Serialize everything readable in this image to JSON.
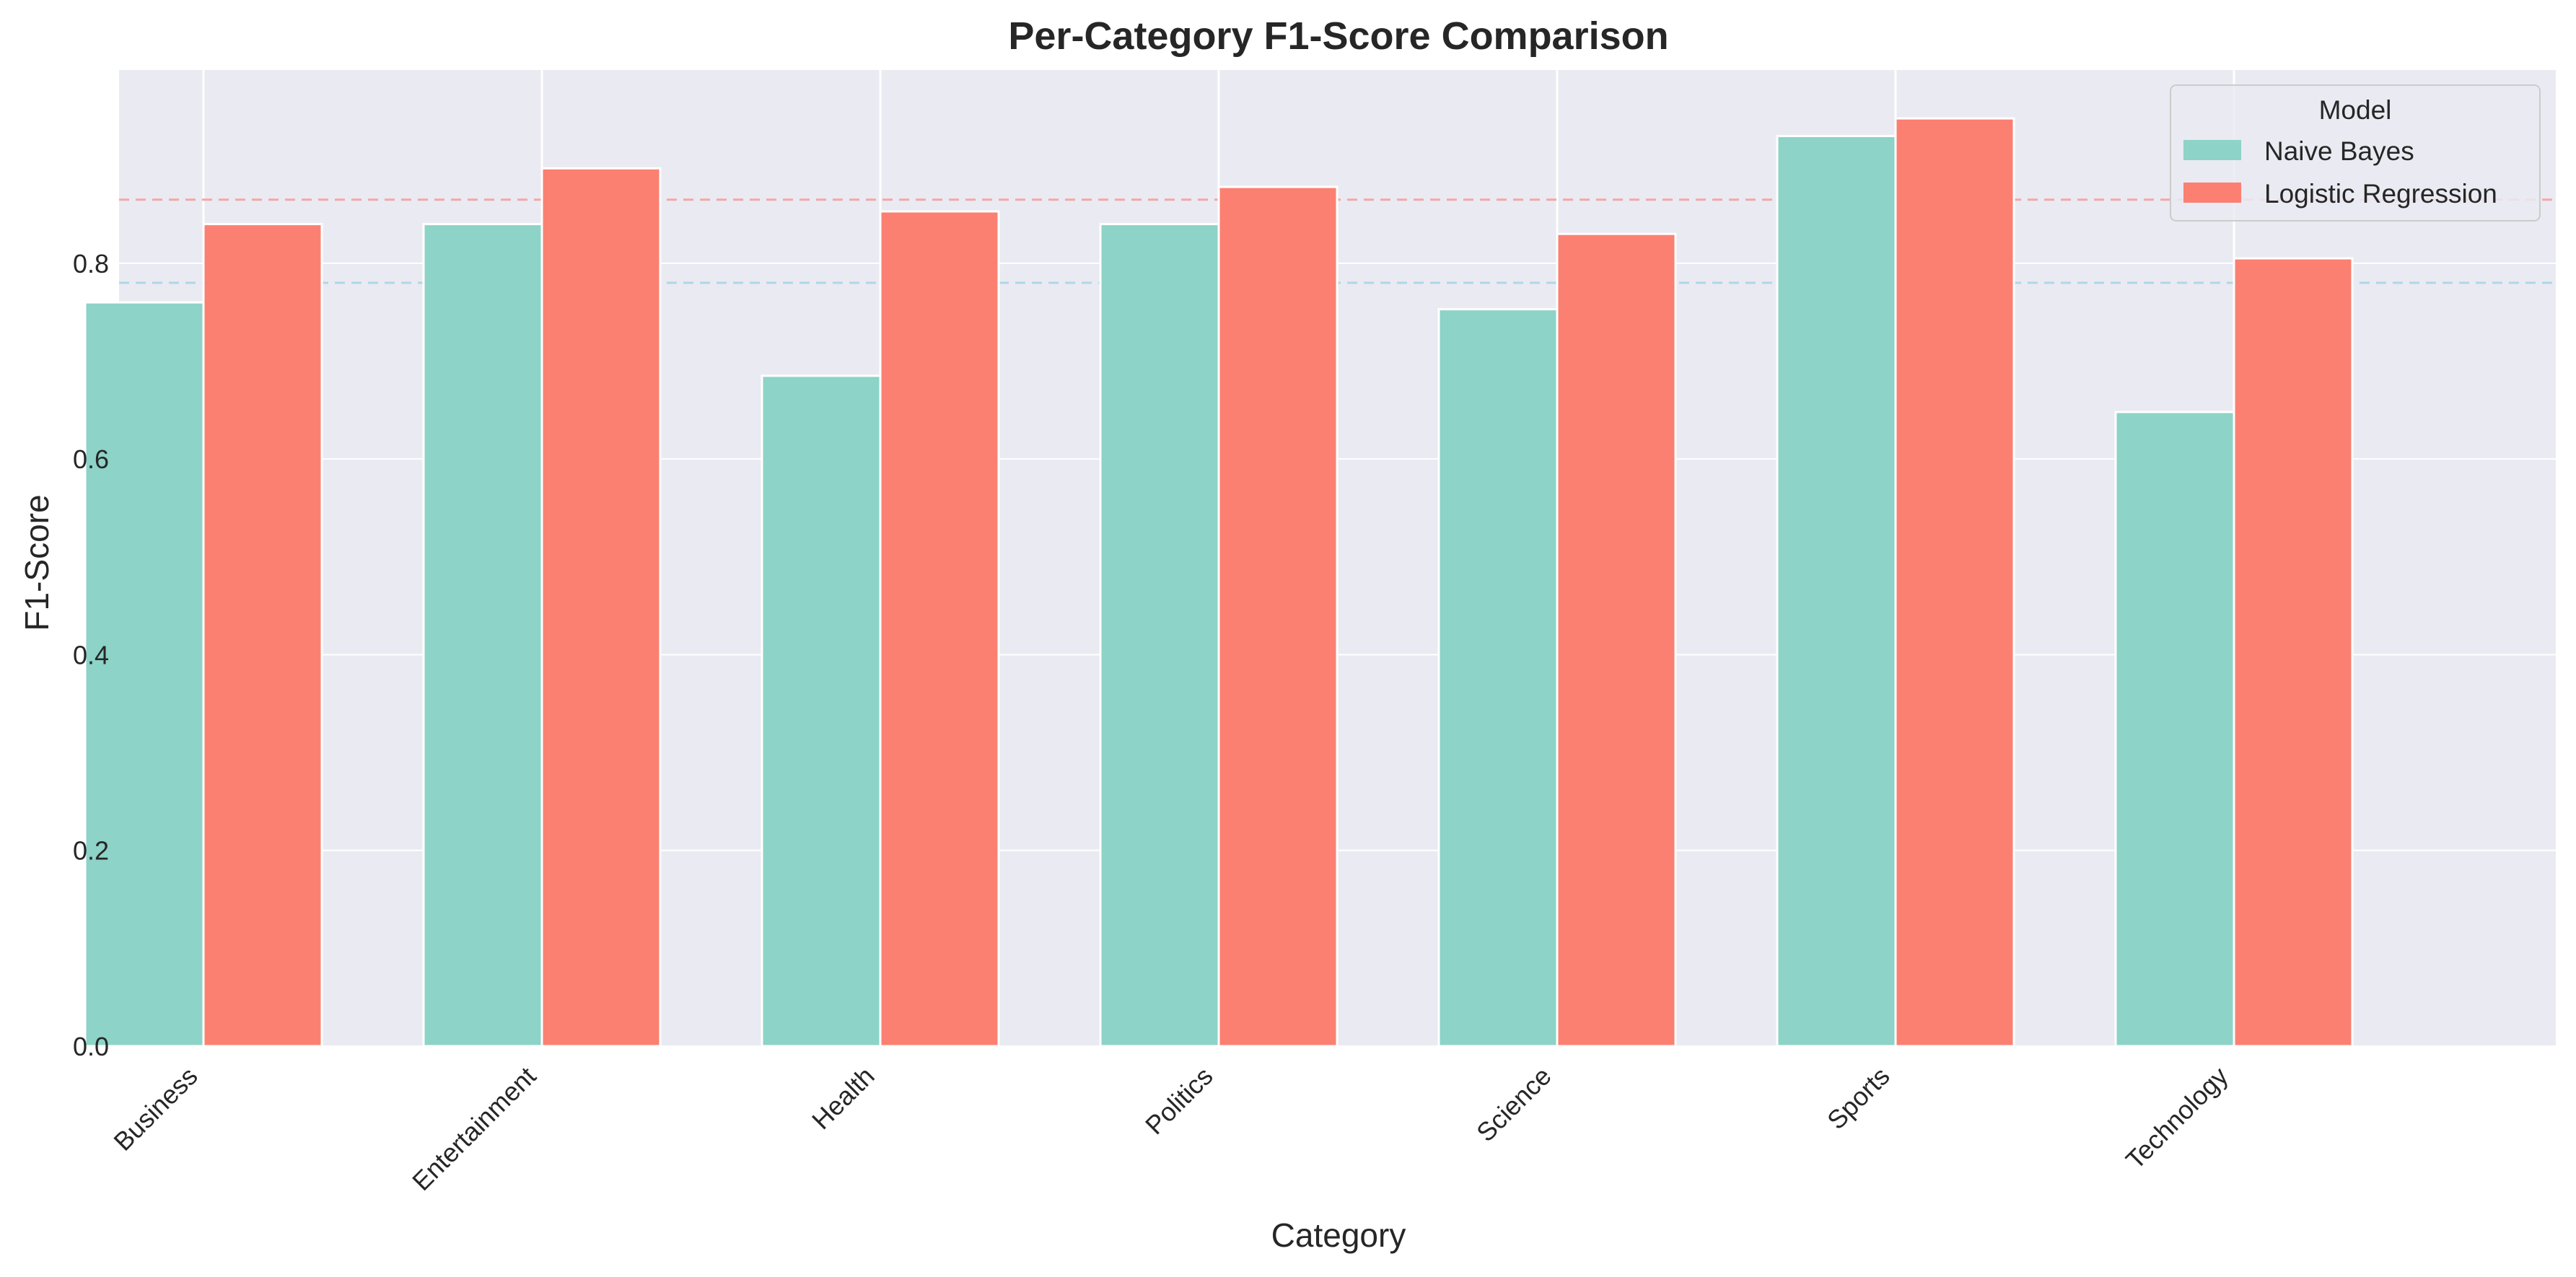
{
  "chart_data": {
    "type": "bar",
    "title": "Per-Category F1-Score Comparison",
    "xlabel": "Category",
    "ylabel": "F1-Score",
    "categories": [
      "Business",
      "Entertainment",
      "Health",
      "Politics",
      "Science",
      "Sports",
      "Technology"
    ],
    "series": [
      {
        "name": "Naive Bayes",
        "color": "#8dd3c7",
        "values": [
          0.76,
          0.84,
          0.685,
          0.84,
          0.753,
          0.93,
          0.648
        ]
      },
      {
        "name": "Logistic Regression",
        "color": "#fb8072",
        "values": [
          0.84,
          0.897,
          0.853,
          0.878,
          0.83,
          0.948,
          0.805
        ]
      }
    ],
    "reference_lines": [
      {
        "value": 0.78,
        "color": "#add8e6",
        "style": "dashed"
      },
      {
        "value": 0.865,
        "color": "#f4a6a6",
        "style": "dashed"
      }
    ],
    "yticks": [
      "0.0",
      "0.2",
      "0.4",
      "0.6",
      "0.8"
    ],
    "ylim": [
      0,
      0.9975
    ],
    "grid": true,
    "legend": {
      "title": "Model",
      "position": "top-right"
    },
    "background": "#eaeaf2"
  }
}
